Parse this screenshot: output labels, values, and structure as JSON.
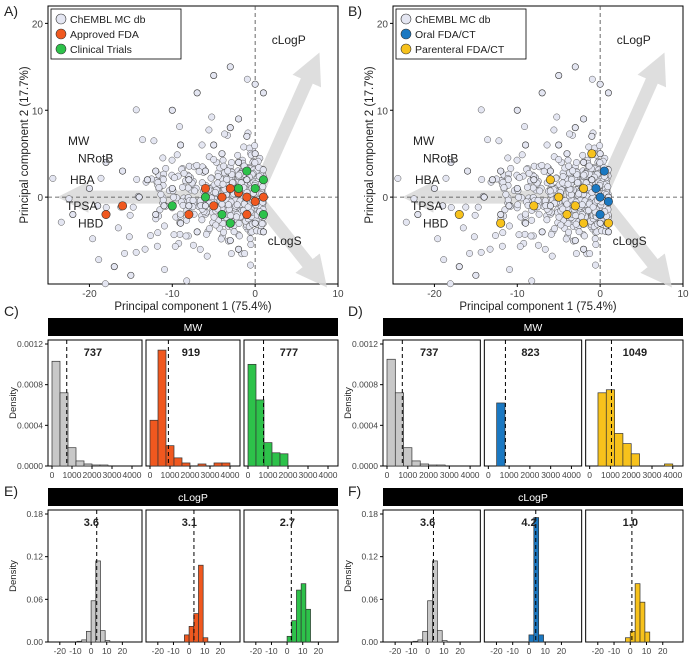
{
  "figure": {
    "panel_labels": [
      "A)",
      "B)",
      "C)",
      "D)",
      "E)",
      "F)"
    ]
  },
  "colors": {
    "db_fill": "#e4e6f2",
    "approved": "#f0581f",
    "clinical": "#2dc24a",
    "oral": "#1a78c2",
    "parenteral": "#f7c21c",
    "hist_gray": "#c8c8c8",
    "strip": "#000000",
    "arrow": "#d9d9d9"
  },
  "chart_data": [
    {
      "id": "A",
      "type": "scatter",
      "xlabel": "Principal component 1 (75.4%)",
      "ylabel": "Principal component 2 (17.7%)",
      "xlim": [
        -25,
        10
      ],
      "ylim": [
        -10,
        22
      ],
      "xticks": [
        -20,
        -10,
        0,
        10
      ],
      "yticks": [
        0,
        10,
        20
      ],
      "legend": {
        "position": "top-left",
        "entries": [
          "ChEMBL MC db",
          "Approved FDA",
          "Clinical Trials"
        ]
      },
      "loading_labels": [
        "cLogP",
        "cLogS",
        "MW",
        "NRotB",
        "HBA",
        "TPSA",
        "HBD"
      ],
      "series": [
        {
          "name": "ChEMBL MC db",
          "color_key": "db_fill",
          "points": [
            [
              -18,
              4
            ],
            [
              -16,
              3
            ],
            [
              -20,
              1
            ],
            [
              -12,
              3
            ],
            [
              -8,
              2
            ],
            [
              -6,
              -1
            ],
            [
              -4,
              5
            ],
            [
              -3,
              8
            ],
            [
              -2,
              9
            ],
            [
              -5,
              14
            ],
            [
              0,
              13
            ],
            [
              1,
              12
            ],
            [
              -9,
              -3
            ],
            [
              -7,
              -4
            ],
            [
              -3,
              -5
            ],
            [
              -2,
              -6
            ],
            [
              1,
              -4
            ],
            [
              -17,
              -8
            ],
            [
              -15,
              -9
            ],
            [
              -10,
              10
            ],
            [
              -7,
              12
            ],
            [
              -3,
              15
            ],
            [
              -14,
              0
            ],
            [
              -11,
              -1
            ],
            [
              -6,
              3
            ],
            [
              -1,
              2
            ],
            [
              1,
              0
            ],
            [
              -13,
              2
            ],
            [
              -19,
              -1
            ],
            [
              -22,
              -2
            ],
            [
              -9,
              6
            ],
            [
              -4,
              -2
            ],
            [
              0,
              -3
            ],
            [
              -5,
              6
            ],
            [
              -8,
              -1
            ],
            [
              -2,
              4
            ],
            [
              -12,
              -2
            ],
            [
              -10,
              1
            ],
            [
              0,
              5
            ],
            [
              -1,
              7
            ]
          ]
        },
        {
          "name": "Approved FDA",
          "color_key": "approved",
          "points": [
            [
              -1,
              0
            ],
            [
              -2,
              0.5
            ],
            [
              0,
              -0.5
            ],
            [
              -3,
              1
            ],
            [
              -4,
              0
            ],
            [
              -5,
              -1
            ],
            [
              -8,
              -2
            ],
            [
              -18,
              -2
            ],
            [
              -16,
              -1
            ],
            [
              -1,
              -2
            ],
            [
              -6,
              1
            ],
            [
              1,
              0
            ]
          ]
        },
        {
          "name": "Clinical Trials",
          "color_key": "clinical",
          "points": [
            [
              -4,
              -2
            ],
            [
              -2,
              1
            ],
            [
              0,
              1
            ],
            [
              1,
              2
            ],
            [
              -6,
              0
            ],
            [
              -10,
              -1
            ],
            [
              -3,
              -3
            ],
            [
              -1,
              3
            ],
            [
              1,
              -2
            ]
          ]
        }
      ]
    },
    {
      "id": "B",
      "type": "scatter",
      "xlabel": "Principal component 1 (75.4%)",
      "ylabel": "Principal component 2 (17.7%)",
      "xlim": [
        -25,
        10
      ],
      "ylim": [
        -10,
        22
      ],
      "xticks": [
        -20,
        -10,
        0,
        10
      ],
      "yticks": [
        0,
        10,
        20
      ],
      "legend": {
        "position": "top-left",
        "entries": [
          "ChEMBL MC db",
          "Oral FDA/CT",
          "Parenteral FDA/CT"
        ]
      },
      "loading_labels": [
        "cLogP",
        "cLogS",
        "MW",
        "NRotB",
        "HBA",
        "TPSA",
        "HBD"
      ],
      "series": [
        {
          "name": "ChEMBL MC db",
          "color_key": "db_fill",
          "points": [
            [
              -18,
              4
            ],
            [
              -16,
              3
            ],
            [
              -20,
              1
            ],
            [
              -12,
              3
            ],
            [
              -8,
              2
            ],
            [
              -6,
              -1
            ],
            [
              -4,
              5
            ],
            [
              -3,
              8
            ],
            [
              -2,
              9
            ],
            [
              -5,
              14
            ],
            [
              0,
              13
            ],
            [
              1,
              12
            ],
            [
              -9,
              -3
            ],
            [
              -7,
              -4
            ],
            [
              -3,
              -5
            ],
            [
              -2,
              -6
            ],
            [
              1,
              -4
            ],
            [
              -17,
              -8
            ],
            [
              -15,
              -9
            ],
            [
              -10,
              10
            ],
            [
              -7,
              12
            ],
            [
              -3,
              15
            ],
            [
              -14,
              0
            ],
            [
              -11,
              -1
            ],
            [
              -6,
              3
            ],
            [
              -1,
              2
            ],
            [
              1,
              0
            ],
            [
              -13,
              2
            ],
            [
              -19,
              -1
            ],
            [
              -22,
              -2
            ],
            [
              -9,
              6
            ],
            [
              -4,
              -2
            ],
            [
              0,
              -3
            ],
            [
              -5,
              6
            ],
            [
              -8,
              -1
            ],
            [
              -2,
              4
            ],
            [
              -12,
              -2
            ],
            [
              -10,
              1
            ],
            [
              0,
              5
            ],
            [
              -1,
              7
            ]
          ]
        },
        {
          "name": "Oral FDA/CT",
          "color_key": "oral",
          "points": [
            [
              0,
              0
            ],
            [
              0.5,
              3
            ],
            [
              1,
              -0.5
            ],
            [
              -0.5,
              1
            ],
            [
              0,
              -2
            ]
          ]
        },
        {
          "name": "Parenteral FDA/CT",
          "color_key": "parenteral",
          "points": [
            [
              -3,
              -1
            ],
            [
              -2,
              1
            ],
            [
              -5,
              0
            ],
            [
              -4,
              -2
            ],
            [
              -8,
              -1
            ],
            [
              -12,
              -3
            ],
            [
              -17,
              -2
            ],
            [
              -6,
              2
            ],
            [
              -1,
              5
            ],
            [
              -2,
              -3
            ],
            [
              1,
              -3
            ]
          ]
        }
      ]
    },
    {
      "id": "C",
      "type": "bar",
      "strip": "MW",
      "ylabel": "Density",
      "ylim": [
        0,
        0.0012
      ],
      "yticks": [
        "0.0000",
        "0.0004",
        "0.0008",
        "0.0012"
      ],
      "xlim": [
        0,
        4300
      ],
      "xticks": [
        0,
        1000,
        2000,
        3000,
        4000
      ],
      "bin_width": 400,
      "facets": [
        {
          "color_key": "hist_gray",
          "median_label": "737",
          "median": 737,
          "values": [
            0.00103,
            0.00072,
            0.00018,
            5e-05,
            2e-05,
            1e-05,
            1e-05,
            0.0,
            0.0,
            0.0
          ]
        },
        {
          "color_key": "approved",
          "median_label": "919",
          "median": 919,
          "values": [
            0.00045,
            0.00114,
            0.0002,
            8e-05,
            3e-05,
            0.0,
            2e-05,
            0.0,
            3e-05,
            3e-05
          ]
        },
        {
          "color_key": "clinical",
          "median_label": "777",
          "median": 777,
          "values": [
            0.001,
            0.00065,
            0.00023,
            0.00013,
            0.00012,
            0.0,
            0.0,
            0.0,
            0.0,
            0.0
          ]
        }
      ]
    },
    {
      "id": "D",
      "type": "bar",
      "strip": "MW",
      "ylabel": "Density",
      "ylim": [
        0,
        0.0012
      ],
      "yticks": [
        "0.0000",
        "0.0004",
        "0.0008",
        "0.0012"
      ],
      "xlim": [
        0,
        4300
      ],
      "xticks": [
        0,
        1000,
        2000,
        3000,
        4000
      ],
      "bin_width": 400,
      "facets": [
        {
          "color_key": "hist_gray",
          "median_label": "737",
          "median": 737,
          "values": [
            0.00105,
            0.00072,
            0.00018,
            5e-05,
            2e-05,
            1e-05,
            1e-05,
            0.0,
            0.0,
            0.0
          ]
        },
        {
          "color_key": "oral",
          "median_label": "823",
          "median": 823,
          "values": [
            0.0,
            0.00062,
            0.0,
            0.0,
            0.0,
            0.0,
            0.0,
            0.0,
            0.0,
            0.0
          ]
        },
        {
          "color_key": "parenteral",
          "median_label": "1049",
          "median": 1049,
          "values": [
            0.0,
            0.00072,
            0.00075,
            0.00032,
            0.00022,
            0.00012,
            0.0,
            0.0,
            0.0,
            2e-05
          ]
        }
      ]
    },
    {
      "id": "E",
      "type": "bar",
      "strip": "cLogP",
      "ylabel": "Density",
      "ylim": [
        0,
        0.18
      ],
      "yticks": [
        "0.00",
        "0.06",
        "0.12",
        "0.18"
      ],
      "xlim": [
        -25,
        30
      ],
      "xticks": [
        -20,
        -10,
        0,
        10,
        20
      ],
      "bin_width": 3,
      "bin_start": -21,
      "facets": [
        {
          "color_key": "hist_gray",
          "median_label": "3.6",
          "median": 3.6,
          "values": [
            0.0,
            0.0,
            0.0,
            0.0,
            0.001,
            0.003,
            0.015,
            0.058,
            0.114,
            0.016,
            0.002,
            0.0,
            0.0
          ]
        },
        {
          "color_key": "approved",
          "median_label": "3.1",
          "median": 3.1,
          "values": [
            0.0,
            0.0,
            0.0,
            0.0,
            0.0,
            0.0,
            0.01,
            0.022,
            0.04,
            0.108,
            0.006,
            0.0,
            0.0
          ]
        },
        {
          "color_key": "clinical",
          "median_label": "2.7",
          "median": 2.7,
          "values": [
            0.0,
            0.0,
            0.0,
            0.0,
            0.0,
            0.0,
            0.0,
            0.008,
            0.03,
            0.073,
            0.082,
            0.046,
            0.0
          ]
        }
      ]
    },
    {
      "id": "F",
      "type": "bar",
      "strip": "cLogP",
      "ylabel": "Density",
      "ylim": [
        0,
        0.18
      ],
      "yticks": [
        "0.00",
        "0.06",
        "0.12",
        "0.18"
      ],
      "xlim": [
        -25,
        30
      ],
      "xticks": [
        -20,
        -10,
        0,
        10,
        20
      ],
      "bin_width": 3,
      "bin_start": -21,
      "facets": [
        {
          "color_key": "hist_gray",
          "median_label": "3.6",
          "median": 3.6,
          "values": [
            0.0,
            0.0,
            0.0,
            0.0,
            0.001,
            0.003,
            0.015,
            0.058,
            0.114,
            0.016,
            0.002,
            0.0,
            0.0
          ]
        },
        {
          "color_key": "oral",
          "median_label": "4.2",
          "median": 4.2,
          "values": [
            0.0,
            0.0,
            0.0,
            0.0,
            0.0,
            0.0,
            0.0,
            0.01,
            0.175,
            0.01,
            0.0,
            0.0,
            0.0
          ]
        },
        {
          "color_key": "parenteral",
          "median_label": "1.0",
          "median": 1.0,
          "values": [
            0.0,
            0.0,
            0.0,
            0.0,
            0.0,
            0.0,
            0.006,
            0.015,
            0.082,
            0.056,
            0.014,
            0.0,
            0.0
          ]
        }
      ]
    }
  ]
}
